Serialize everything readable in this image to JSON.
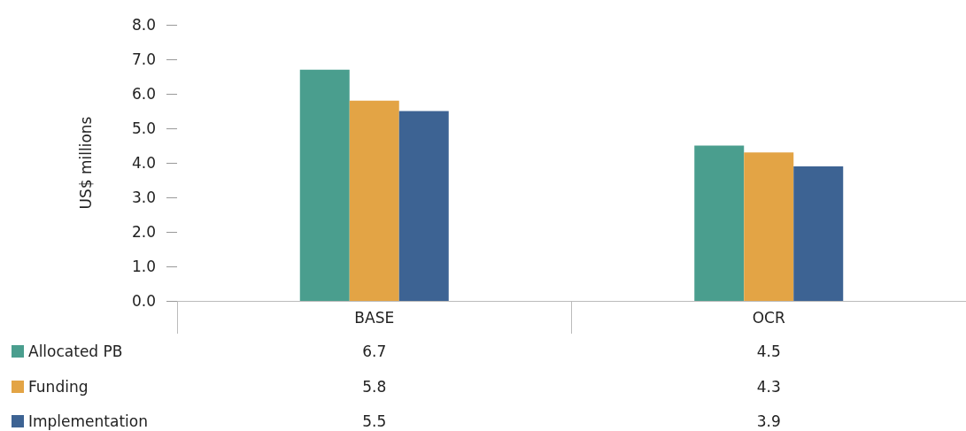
{
  "chart_data": {
    "type": "bar",
    "ylabel": "US$ millions",
    "categories": [
      "BASE",
      "OCR"
    ],
    "series": [
      {
        "name": "Allocated PB",
        "color": "#4a9e8e",
        "values": [
          6.7,
          4.5
        ]
      },
      {
        "name": "Funding",
        "color": "#e3a445",
        "values": [
          5.8,
          4.3
        ]
      },
      {
        "name": "Implementation",
        "color": "#3d6393",
        "values": [
          5.5,
          3.9
        ]
      }
    ],
    "ylim": [
      0,
      8
    ],
    "yticks": [
      {
        "value": 0,
        "label": "0.0"
      },
      {
        "value": 1,
        "label": "1.0"
      },
      {
        "value": 2,
        "label": "2.0"
      },
      {
        "value": 3,
        "label": "3.0"
      },
      {
        "value": 4,
        "label": "4.0"
      },
      {
        "value": 5,
        "label": "5.0"
      },
      {
        "value": 6,
        "label": "6.0"
      },
      {
        "value": 7,
        "label": "7.0"
      },
      {
        "value": 8,
        "label": "8.0"
      }
    ],
    "grid": false,
    "legend": "bottom left",
    "data_labels": true
  }
}
